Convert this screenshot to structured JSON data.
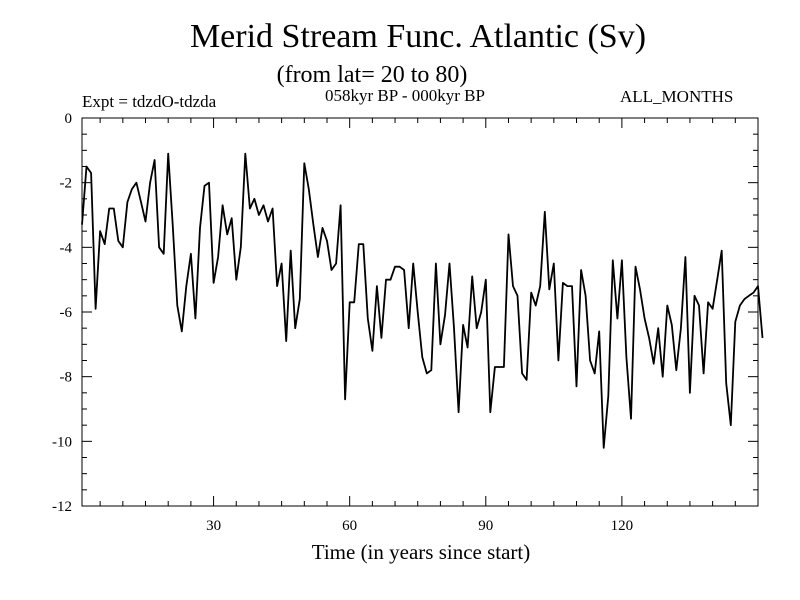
{
  "chart_data": {
    "type": "line",
    "title": "Merid Stream Func. Atlantic (Sv)",
    "subtitle": "(from lat= 20 to 80)",
    "left_label": "Expt = tdzdO-tdzda",
    "center_label": "058kyr BP - 000kyr BP",
    "right_label": "ALL_MONTHS",
    "xlabel": "Time (in years since start)",
    "ylabel": "",
    "xlim": [
      1,
      150
    ],
    "ylim": [
      -12,
      0
    ],
    "xticks": [
      30,
      60,
      90,
      120
    ],
    "yticks": [
      0,
      -2,
      -4,
      -6,
      -8,
      -10,
      -12
    ],
    "series": [
      {
        "name": "Merid Stream Func.",
        "values": [
          -3.3,
          -1.5,
          -1.7,
          -5.9,
          -3.5,
          -3.9,
          -2.8,
          -2.8,
          -3.8,
          -4.0,
          -2.6,
          -2.2,
          -2.0,
          -2.6,
          -3.2,
          -2.0,
          -1.3,
          -4.0,
          -4.2,
          -1.1,
          -3.3,
          -5.8,
          -6.6,
          -5.2,
          -4.2,
          -6.2,
          -3.4,
          -2.1,
          -2.0,
          -5.1,
          -4.3,
          -2.7,
          -3.6,
          -3.1,
          -5.0,
          -4.0,
          -1.1,
          -2.8,
          -2.5,
          -3.0,
          -2.7,
          -3.2,
          -2.8,
          -5.2,
          -4.5,
          -6.9,
          -4.1,
          -6.5,
          -5.6,
          -1.4,
          -2.2,
          -3.3,
          -4.3,
          -3.4,
          -3.8,
          -4.7,
          -4.5,
          -2.7,
          -8.7,
          -5.7,
          -5.7,
          -3.9,
          -3.9,
          -6.2,
          -7.2,
          -5.2,
          -6.8,
          -5.0,
          -5.0,
          -4.6,
          -4.6,
          -4.7,
          -6.5,
          -4.5,
          -6.0,
          -7.4,
          -7.9,
          -7.8,
          -4.5,
          -7.0,
          -6.1,
          -4.5,
          -6.5,
          -9.1,
          -6.4,
          -7.1,
          -4.9,
          -6.5,
          -6.0,
          -5.0,
          -9.1,
          -7.7,
          -7.7,
          -7.7,
          -3.6,
          -5.2,
          -5.5,
          -7.9,
          -8.1,
          -5.4,
          -5.8,
          -5.2,
          -2.9,
          -5.3,
          -4.5,
          -7.5,
          -5.1,
          -5.2,
          -5.2,
          -8.3,
          -4.7,
          -5.5,
          -7.5,
          -7.9,
          -6.6,
          -10.2,
          -8.6,
          -4.4,
          -6.2,
          -4.4,
          -7.4,
          -9.3,
          -4.6,
          -5.3,
          -6.2,
          -6.8,
          -7.6,
          -6.5,
          -8.0,
          -5.8,
          -6.4,
          -7.8,
          -6.5,
          -4.3,
          -8.5,
          -5.5,
          -5.8,
          -7.9,
          -5.7,
          -5.9,
          -5.0,
          -4.1,
          -8.2,
          -9.5,
          -6.3,
          -5.8,
          -5.6,
          -5.5,
          -5.4,
          -5.2,
          -6.8
        ]
      }
    ],
    "grid": false,
    "legend": "none",
    "colors": {
      "line": "#000000",
      "axes": "#000000",
      "background": "#ffffff"
    }
  }
}
